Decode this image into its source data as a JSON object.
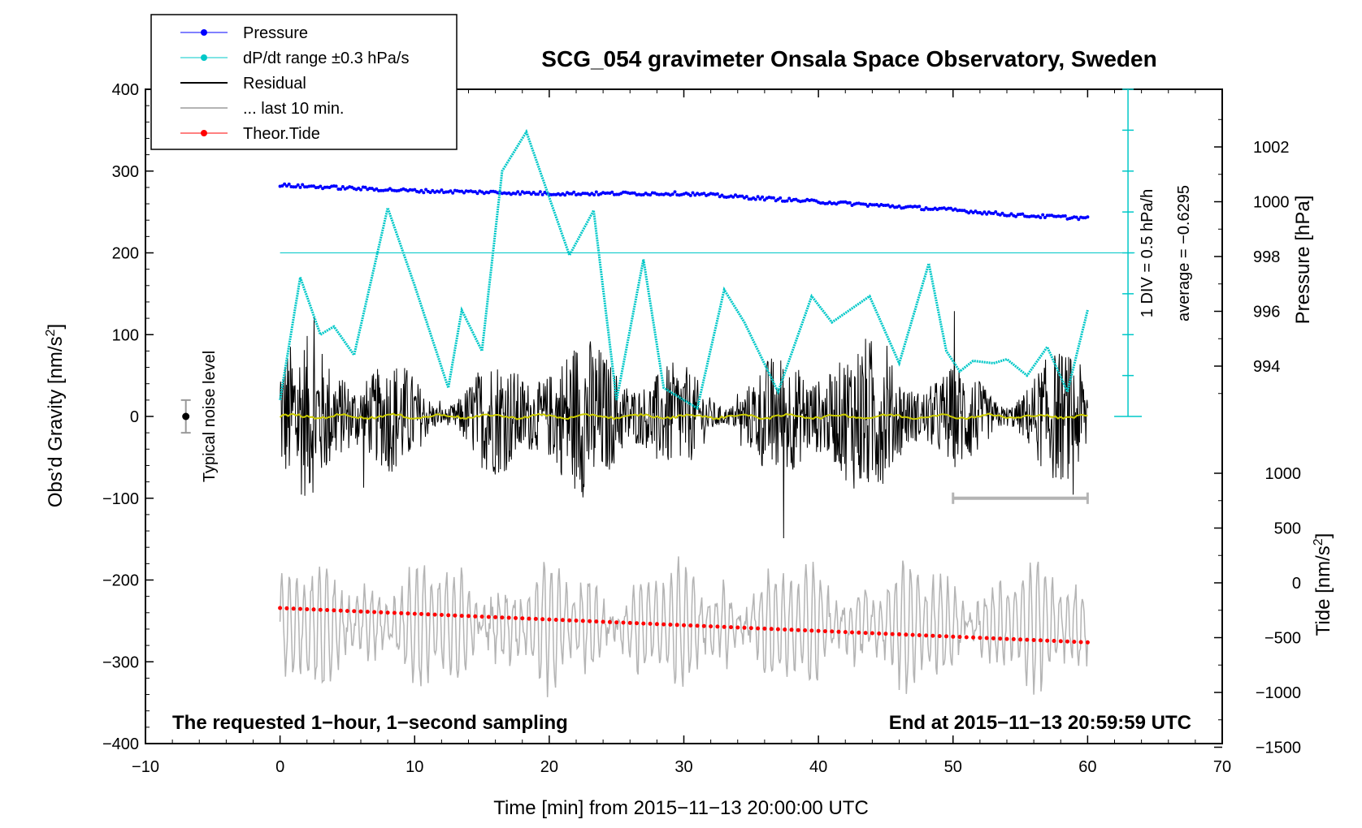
{
  "chart_data": {
    "type": "line",
    "title": "SCG_054 gravimeter Onsala Space Observatory, Sweden",
    "xlabel": "Time [min] from 2015−11−13 20:00:00 UTC",
    "ylabel_left": "Obs’d Gravity [nm/s",
    "ylabel_left_sup": "2",
    "ylabel_left_end": "]",
    "ylabel_pressure": "Pressure [hPa]",
    "ylabel_tide": "Tide [nm/s",
    "ylabel_tide_sup": "2",
    "ylabel_tide_end": "]",
    "xlim": [
      -10,
      70
    ],
    "ylim": [
      -400,
      400
    ],
    "pressure_lim": [
      992,
      1004
    ],
    "tide_lim": [
      -1500,
      1000
    ],
    "x_ticks": [
      "−10",
      "0",
      "10",
      "20",
      "30",
      "40",
      "50",
      "60",
      "70"
    ],
    "y_ticks": [
      "400",
      "300",
      "200",
      "100",
      "0",
      "−100",
      "−200",
      "−300",
      "−400"
    ],
    "pressure_ticks": [
      "1002",
      "1000",
      "998",
      "996",
      "994"
    ],
    "tide_ticks": [
      "1000",
      "500",
      "0",
      "−500",
      "−1000",
      "−1500"
    ],
    "legend": [
      {
        "label": "Pressure",
        "color": "#0000ff"
      },
      {
        "label": "dP/dt range ±0.3 hPa/s",
        "color": "#00c8c8"
      },
      {
        "label": "Residual",
        "color": "#000000"
      },
      {
        "label": "... last 10 min.",
        "color": "#b4b4b4"
      },
      {
        "label": "Theor.Tide",
        "color": "#ff0000"
      }
    ],
    "series": [
      {
        "name": "Pressure",
        "unit": "hPa",
        "x": [
          0,
          10,
          20,
          30,
          40,
          50,
          55,
          60
        ],
        "values": [
          1000.6,
          1000.4,
          1000.3,
          1000.3,
          1000.0,
          999.7,
          999.5,
          999.4
        ]
      },
      {
        "name": "dP/dt range",
        "unit": "nm/s2 scale",
        "x": [
          0,
          1.5,
          3,
          4,
          5.5,
          8,
          10,
          12.5,
          13.5,
          15,
          16.5,
          18.3,
          21.5,
          23.3,
          25,
          27,
          28.5,
          31,
          33,
          34.5,
          37,
          39.5,
          41,
          43.8,
          46,
          48.2,
          49.5,
          50.5,
          51.5,
          53,
          54,
          55.5,
          57,
          58.5,
          60
        ],
        "values": [
          20,
          170,
          100,
          110,
          75,
          255,
          160,
          35,
          130,
          80,
          300,
          348,
          197,
          252,
          20,
          192,
          35,
          10,
          155,
          115,
          30,
          147,
          115,
          147,
          65,
          187,
          80,
          55,
          68,
          65,
          70,
          50,
          85,
          30,
          130
        ]
      },
      {
        "name": "Theor.Tide",
        "unit": "nm/s2",
        "x": [
          0,
          60
        ],
        "values": [
          -230,
          -543
        ]
      }
    ],
    "noise_level": {
      "label": "Typical noise level",
      "x": -7,
      "y": 0,
      "range": 20
    },
    "pressure_scale_bar": {
      "label": "1 DIV = 0.5 hPa/h",
      "average": "average = −0.6295"
    },
    "notes": [
      "The requested 1−hour, 1−second sampling",
      "End at 2015−11−13 20:59:59 UTC"
    ],
    "colors": {
      "pressure": "#0000ff",
      "dpdt": "#00c8c8",
      "residual": "#000000",
      "last10": "#b4b4b4",
      "tide": "#ff0000",
      "smooth": "#cccc00"
    }
  }
}
